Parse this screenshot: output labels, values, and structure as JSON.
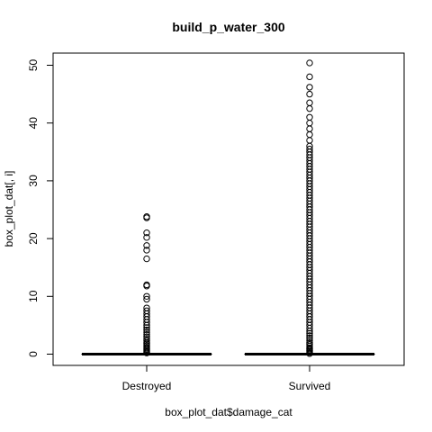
{
  "chart_data": {
    "type": "box",
    "title": "build_p_water_300",
    "xlabel": "box_plot_dat$damage_cat",
    "ylabel": "box_plot_dat[, i]",
    "ylim": [
      0,
      50
    ],
    "yticks": [
      0,
      10,
      20,
      30,
      40,
      50
    ],
    "categories": [
      "Destroyed",
      "Survived"
    ],
    "boxes": [
      {
        "category": "Destroyed",
        "median": 0,
        "q1": 0,
        "q3": 0,
        "whisker_low": 0,
        "whisker_high": 0,
        "outliers": [
          0.2,
          0.4,
          0.6,
          0.8,
          1.0,
          1.2,
          1.5,
          1.8,
          2.0,
          2.3,
          2.6,
          3.0,
          3.4,
          3.8,
          4.2,
          4.6,
          5.0,
          5.5,
          6.0,
          6.5,
          7.0,
          7.5,
          8.0,
          9.5,
          10.0,
          11.8,
          12.0,
          16.5,
          18.0,
          18.8,
          20.2,
          21.0,
          23.6,
          23.8
        ]
      },
      {
        "category": "Survived",
        "median": 0,
        "q1": 0,
        "q3": 0,
        "whisker_low": 0,
        "whisker_high": 0,
        "outliers": [
          0.1,
          0.3,
          0.5,
          0.7,
          0.9,
          1.1,
          1.4,
          1.7,
          2.0,
          2.4,
          2.8,
          3.2,
          3.6,
          4.0,
          4.5,
          5.0,
          5.5,
          6.0,
          6.5,
          7.0,
          7.5,
          8.0,
          8.5,
          9.0,
          9.5,
          10.0,
          10.5,
          11.0,
          11.5,
          12.0,
          12.5,
          13.0,
          13.5,
          14.0,
          14.5,
          15.0,
          15.5,
          16.0,
          16.5,
          17.0,
          17.5,
          18.0,
          18.5,
          19.0,
          19.5,
          20.0,
          20.5,
          21.0,
          21.5,
          22.0,
          22.5,
          23.0,
          23.5,
          24.0,
          24.5,
          25.0,
          25.5,
          26.0,
          26.5,
          27.0,
          27.5,
          28.0,
          28.5,
          29.0,
          29.5,
          30.0,
          30.5,
          31.0,
          31.5,
          32.0,
          32.5,
          33.0,
          33.5,
          34.0,
          34.5,
          35.0,
          35.5,
          36.0,
          37.0,
          38.0,
          39.0,
          40.0,
          41.0,
          42.5,
          43.5,
          45.0,
          46.2,
          48.0,
          50.4
        ]
      }
    ]
  }
}
